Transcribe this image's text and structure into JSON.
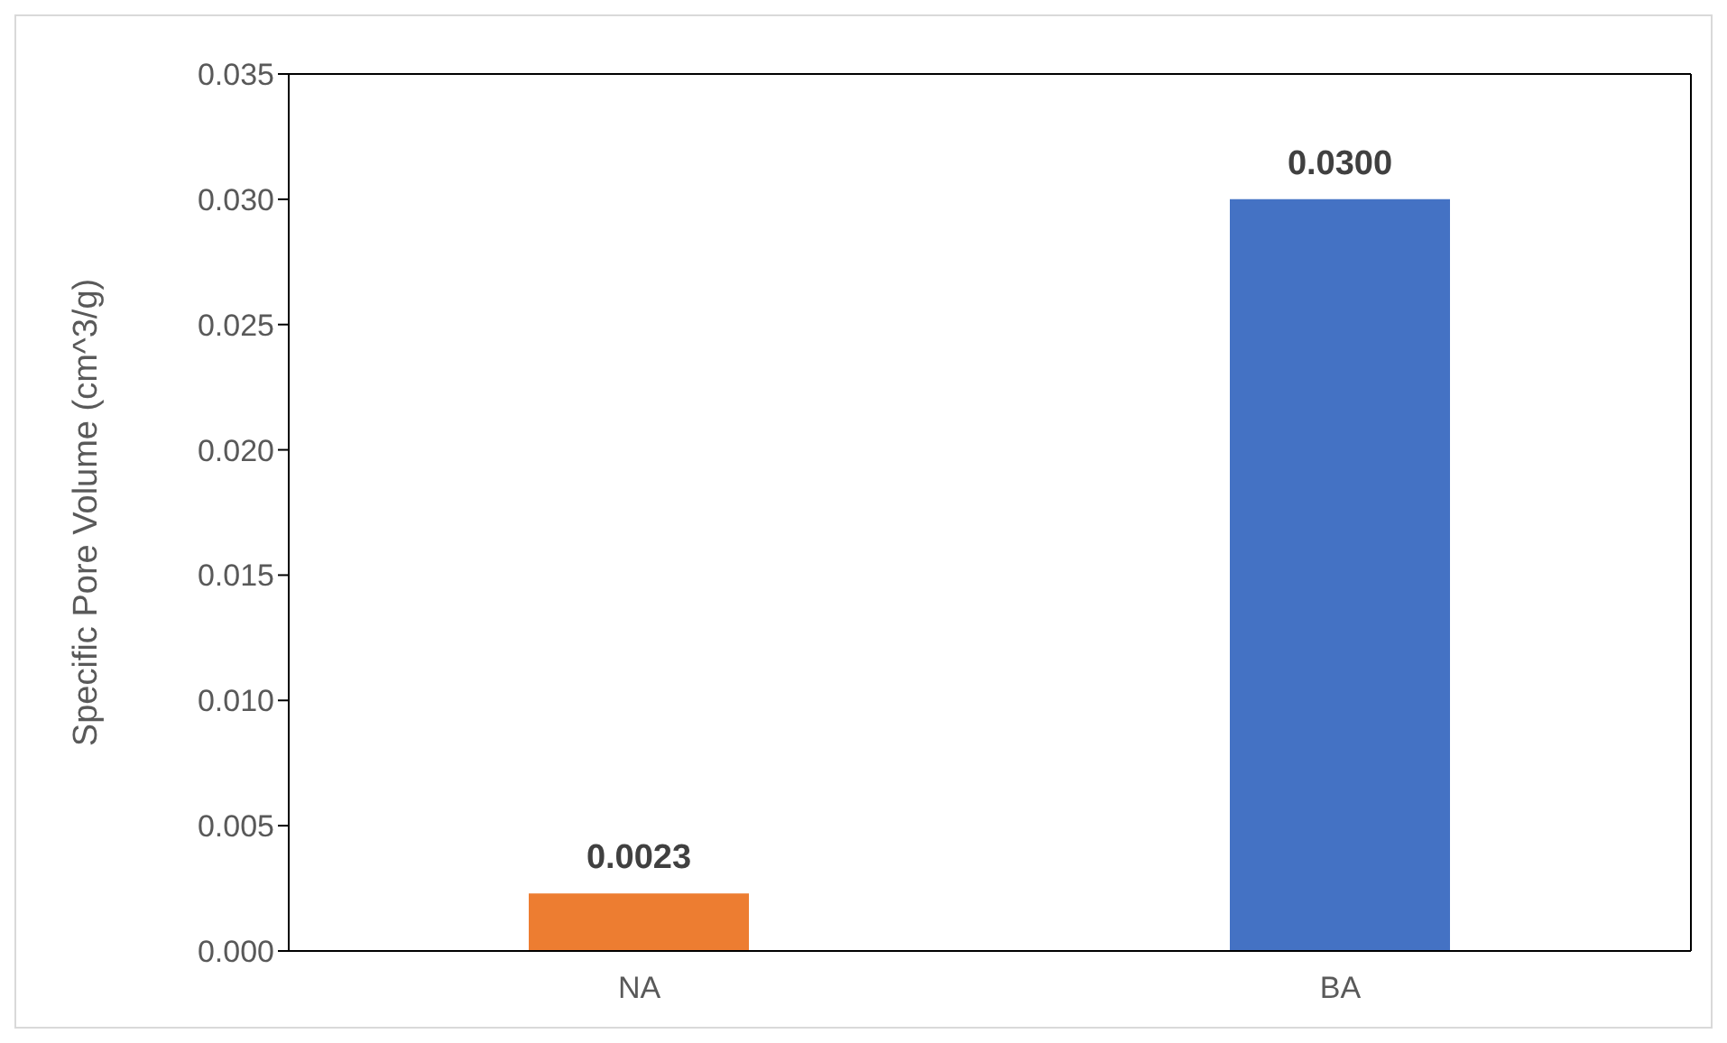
{
  "chart_data": {
    "type": "bar",
    "ylabel": "Specific Pore Volume (cm^3/g)",
    "categories": [
      "NA",
      "BA"
    ],
    "values": [
      0.0023,
      0.03
    ],
    "colors": [
      "#ed7d31",
      "#4472c4"
    ],
    "value_labels": [
      "0.0023",
      "0.0300"
    ],
    "ylim": [
      0,
      0.035
    ],
    "yticks": [
      {
        "value": 0,
        "label": "0.000"
      },
      {
        "value": 0.005,
        "label": "0.005"
      },
      {
        "value": 0.01,
        "label": "0.010"
      },
      {
        "value": 0.015,
        "label": "0.015"
      },
      {
        "value": 0.02,
        "label": "0.020"
      },
      {
        "value": 0.025,
        "label": "0.025"
      },
      {
        "value": 0.03,
        "label": "0.030"
      },
      {
        "value": 0.035,
        "label": "0.035"
      }
    ],
    "grid": false,
    "legend": false
  }
}
